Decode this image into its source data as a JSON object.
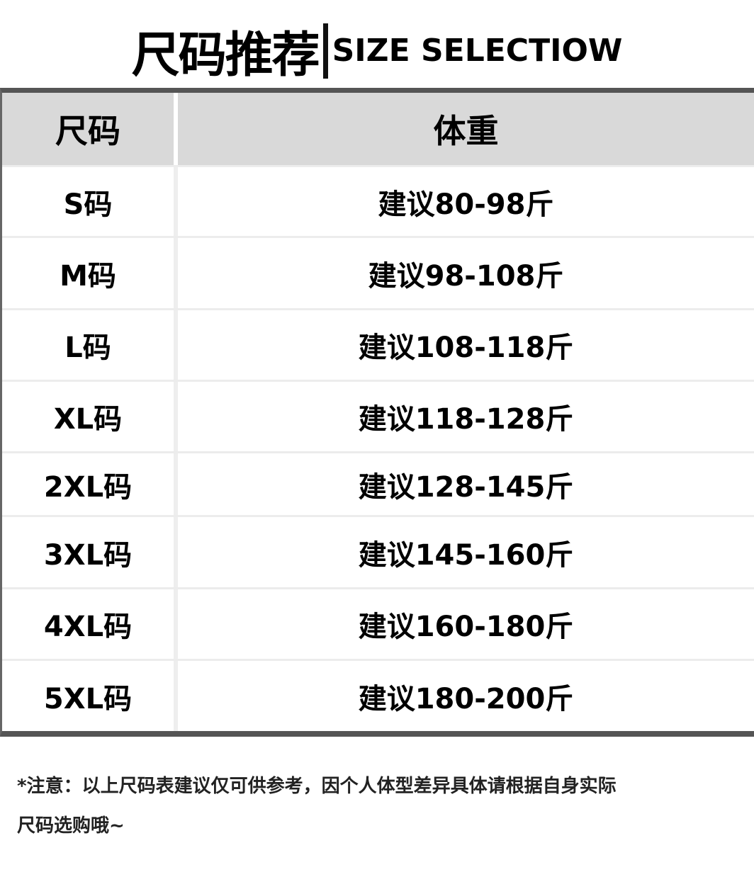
{
  "title": {
    "chinese": "尺码推荐",
    "english": "SIZE SELECTIOW"
  },
  "table": {
    "headers": [
      "尺码",
      "体重"
    ],
    "rows": [
      {
        "size": "S码",
        "weight": "建议80-98斤"
      },
      {
        "size": "M码",
        "weight": "建议98-108斤"
      },
      {
        "size": "L码",
        "weight": "建议108-118斤"
      },
      {
        "size": "XL码",
        "weight": "建议118-128斤"
      },
      {
        "size": "2XL码",
        "weight": "建议128-145斤"
      },
      {
        "size": "3XL码",
        "weight": "建议145-160斤"
      },
      {
        "size": "4XL码",
        "weight": "建议160-180斤"
      },
      {
        "size": "5XL码",
        "weight": "建议180-200斤"
      }
    ]
  },
  "note": {
    "line1": "*注意：以上尺码表建议仅可供参考，因个人体型差异具体请根据自身实际",
    "line2": "尺码选购哦~"
  }
}
